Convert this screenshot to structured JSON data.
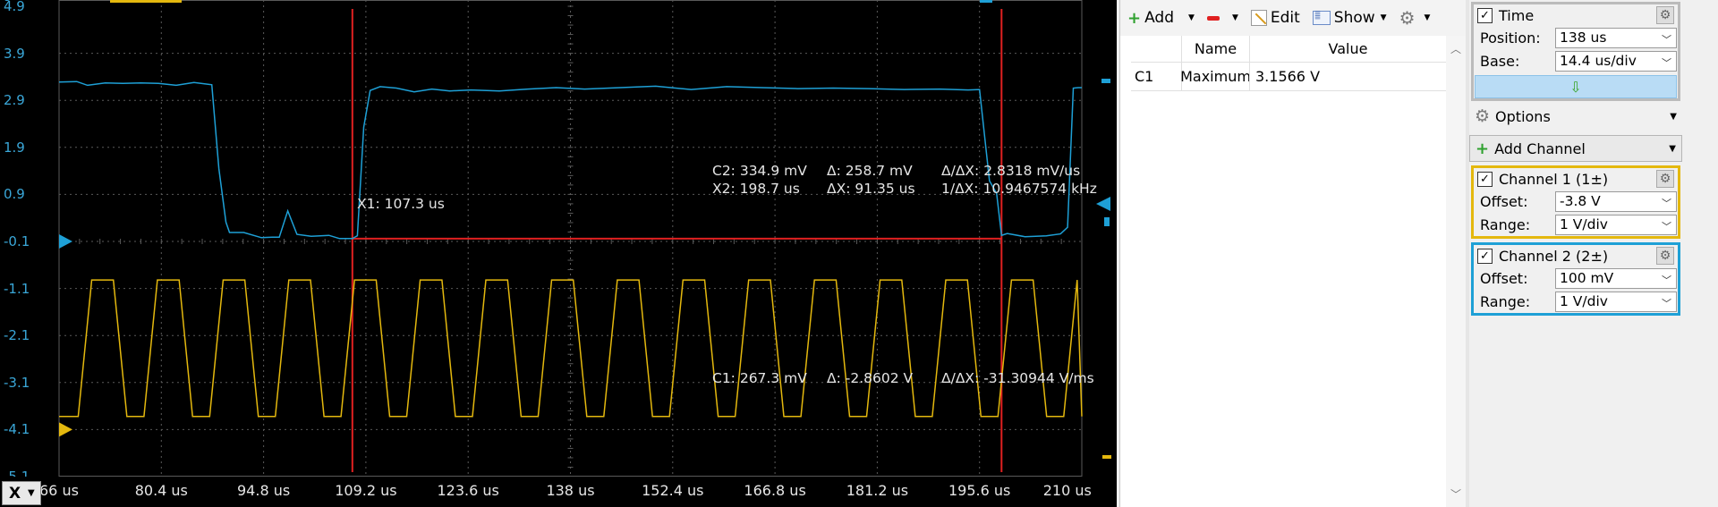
{
  "colors": {
    "channel1": "#e4b80e",
    "channel2": "#1ea0d6",
    "cursor": "#e02020",
    "grid": "#5a5a5a",
    "background": "#000000"
  },
  "plot": {
    "y_ticks": [
      "4.9",
      "3.9",
      "2.9",
      "1.9",
      "0.9",
      "-0.1",
      "-1.1",
      "-2.1",
      "-3.1",
      "-4.1",
      "-5.1"
    ],
    "y_partial_top": "9",
    "x_ticks": [
      "66 us",
      "80.4 us",
      "94.8 us",
      "109.2 us",
      "123.6 us",
      "138 us",
      "152.4 us",
      "166.8 us",
      "181.2 us",
      "195.6 us",
      "210 us"
    ],
    "x_selector": "X"
  },
  "chart_data": {
    "type": "line",
    "x_unit": "us",
    "xlim": [
      66,
      210
    ],
    "ylim": [
      -5.1,
      4.9
    ],
    "cursors_x": [
      107.3,
      198.7
    ],
    "series": [
      {
        "channel": "C2",
        "color": "#1ea0d6",
        "x": [
          66,
          68.5,
          70,
          72.5,
          75,
          77.5,
          80,
          82.5,
          85,
          87.5,
          88.5,
          89.5,
          90,
          92,
          94.5,
          96,
          97,
          98.2,
          99.5,
          101.5,
          104,
          105.5,
          107.3,
          108,
          108.9,
          109.8,
          111.2,
          113.5,
          116,
          118.5,
          121,
          124,
          128,
          132,
          136,
          140,
          145,
          150,
          155,
          160,
          165,
          170,
          175,
          180,
          185,
          190,
          194,
          195.6,
          197,
          198,
          198.7,
          199.5,
          202,
          205,
          207,
          208,
          208.8,
          209.5,
          210
        ],
        "values": [
          3.29,
          3.3,
          3.22,
          3.27,
          3.26,
          3.27,
          3.26,
          3.22,
          3.28,
          3.23,
          1.45,
          0.31,
          0.09,
          0.09,
          -0.02,
          -0.01,
          -0.01,
          0.55,
          0.05,
          0.01,
          0.03,
          -0.04,
          -0.04,
          0.02,
          2.33,
          3.11,
          3.19,
          3.16,
          3.08,
          3.14,
          3.1,
          3.12,
          3.1,
          3.14,
          3.17,
          3.14,
          3.17,
          3.2,
          3.13,
          3.19,
          3.17,
          3.15,
          3.16,
          3.15,
          3.13,
          3.14,
          3.12,
          3.13,
          1.19,
          0.92,
          0.03,
          0.07,
          0.0,
          0.02,
          0.06,
          0.2,
          3.16,
          3.17,
          3.17
        ]
      },
      {
        "channel": "C1",
        "color": "#e4b80e",
        "type": "square",
        "period_us": 9.25,
        "first_rise_us": 68.7,
        "high_v": -0.92,
        "low_v": -3.82,
        "low_start_us": 66,
        "duty_high": 0.33,
        "edge_us": 1.9
      }
    ]
  },
  "annotations": {
    "x1": "X1: 107.3 us",
    "c2_value": "C2: 334.9 mV",
    "c2_delta": "Δ: 258.7 mV",
    "c2_rate": "Δ/ΔX: 2.8318 mV/us",
    "x2": "X2: 198.7 us",
    "delta_x": "ΔX: 91.35 us",
    "inv_delta_x": "1/ΔX: 10.9467574 kHz",
    "c1_value": "C1: 267.3 mV",
    "c1_delta": "Δ: -2.8602 V",
    "c1_rate": "Δ/ΔX: -31.30944 V/ms"
  },
  "measurements": {
    "toolbar": {
      "add": "Add",
      "edit": "Edit",
      "show": "Show"
    },
    "columns": [
      "",
      "Name",
      "Value"
    ],
    "rows": [
      {
        "channel": "C1",
        "name": "Maximum",
        "value": "3.1566 V"
      }
    ]
  },
  "time": {
    "title": "Time",
    "position_label": "Position:",
    "position_value": "138 us",
    "base_label": "Base:",
    "base_value": "14.4 us/div"
  },
  "options_label": "Options",
  "add_channel_label": "Add Channel",
  "channel1": {
    "title": "Channel 1 (1±)",
    "offset_label": "Offset:",
    "offset_value": "-3.8 V",
    "range_label": "Range:",
    "range_value": "1 V/div"
  },
  "channel2": {
    "title": "Channel 2 (2±)",
    "offset_label": "Offset:",
    "offset_value": "100 mV",
    "range_label": "Range:",
    "range_value": "1 V/div"
  }
}
